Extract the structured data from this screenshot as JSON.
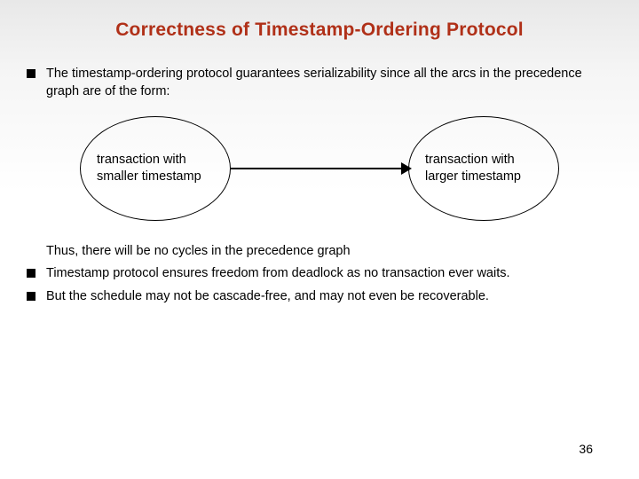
{
  "title": "Correctness of Timestamp-Ordering Protocol",
  "title_color": "#b03018",
  "bullets": {
    "b1": "The timestamp-ordering protocol guarantees serializability since all the arcs in the precedence graph are of the form:",
    "b2": "Timestamp protocol ensures freedom from deadlock as no transaction ever waits.",
    "b3": "But the schedule may not be cascade-free, and may  not even be recoverable."
  },
  "diagram": {
    "left_text": "transaction with smaller timestamp",
    "right_text": "transaction with larger timestamp"
  },
  "thus_text": "Thus, there will be no cycles in the precedence graph",
  "page_number": "36",
  "colors": {
    "bullet": "#000000",
    "text": "#000000",
    "bg_top": "#e8e8e8",
    "bg_bottom": "#ffffff"
  }
}
